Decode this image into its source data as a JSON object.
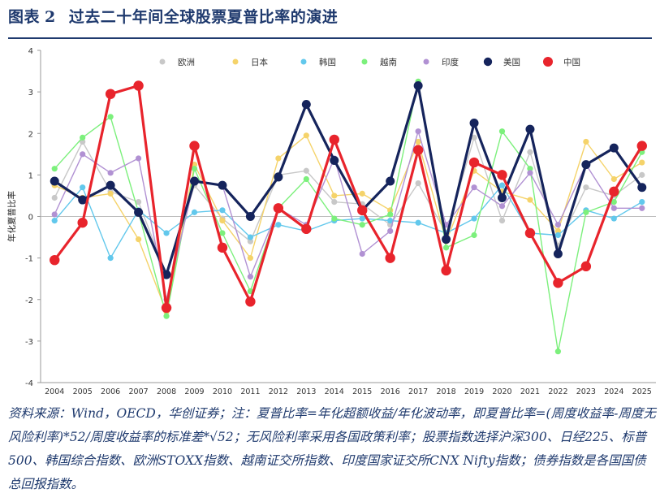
{
  "header": {
    "label": "图表",
    "number": "2",
    "title": "过去二十年间全球股票夏普比率的演进"
  },
  "chart_data": {
    "type": "line",
    "title": "过去二十年间全球股票夏普比率的演进",
    "xlabel": "",
    "ylabel": "年化夏普比率",
    "ylim": [
      -4,
      4
    ],
    "yticks": [
      -4,
      -3,
      -2,
      -1,
      0,
      1,
      2,
      3,
      4
    ],
    "legend_position": "top",
    "x": [
      "2004",
      "2005",
      "2006",
      "2007",
      "2008",
      "2009",
      "2010",
      "2011",
      "2012",
      "2013",
      "2014",
      "2015",
      "2016",
      "2017",
      "2018",
      "2019",
      "2020",
      "2021",
      "2022",
      "2023",
      "2024",
      "2025"
    ],
    "series": [
      {
        "name": "欧洲",
        "color": "#c8c8c8",
        "values": [
          0.45,
          1.8,
          0.6,
          0.35,
          -1.4,
          0.75,
          -0.05,
          -0.6,
          1.0,
          1.1,
          0.35,
          0.3,
          -0.2,
          0.8,
          -0.4,
          1.9,
          -0.1,
          1.55,
          -0.7,
          0.7,
          0.5,
          1.0
        ]
      },
      {
        "name": "日本",
        "color": "#f5d36a",
        "values": [
          0.75,
          0.45,
          0.55,
          -0.55,
          -2.3,
          1.25,
          -0.1,
          -1.0,
          1.4,
          1.95,
          0.5,
          0.55,
          0.15,
          1.8,
          -0.6,
          1.1,
          0.6,
          0.4,
          -0.35,
          1.8,
          0.9,
          1.3
        ]
      },
      {
        "name": "韩国",
        "color": "#62c8ec",
        "values": [
          -0.1,
          0.7,
          -1.0,
          0.15,
          -0.4,
          0.1,
          0.15,
          -0.5,
          -0.2,
          -0.35,
          -0.1,
          -0.05,
          -0.1,
          -0.15,
          -0.4,
          -0.05,
          0.75,
          -0.4,
          -0.45,
          0.15,
          -0.05,
          0.35
        ]
      },
      {
        "name": "越南",
        "color": "#7cf07c",
        "values": [
          1.15,
          1.9,
          2.4,
          0.1,
          -2.4,
          1.15,
          -0.4,
          -1.8,
          0.2,
          0.9,
          -0.05,
          -0.2,
          0.05,
          3.25,
          -0.75,
          -0.45,
          2.05,
          1.15,
          -3.25,
          0.1,
          0.35,
          1.55
        ]
      },
      {
        "name": "印度",
        "color": "#b191d3",
        "values": [
          0.05,
          1.5,
          1.05,
          1.4,
          -2.0,
          0.85,
          0.75,
          -1.45,
          0.2,
          -0.2,
          1.4,
          -0.9,
          -0.35,
          2.05,
          -0.2,
          0.7,
          0.25,
          1.05,
          -0.2,
          1.25,
          0.2,
          0.2
        ]
      },
      {
        "name": "美国",
        "color": "#15245c",
        "values": [
          0.85,
          0.4,
          0.75,
          0.1,
          -1.4,
          0.85,
          0.75,
          0.0,
          0.95,
          2.7,
          1.35,
          0.15,
          0.85,
          3.15,
          -0.55,
          2.25,
          0.45,
          2.1,
          -0.9,
          1.25,
          1.65,
          0.7
        ]
      },
      {
        "name": "中国",
        "color": "#e8242c",
        "values": [
          -1.05,
          -0.15,
          2.95,
          3.15,
          -2.2,
          1.7,
          -0.75,
          -2.05,
          0.2,
          -0.3,
          1.85,
          0.15,
          -1.0,
          1.6,
          -1.3,
          1.3,
          1.0,
          -0.4,
          -1.6,
          -1.2,
          0.6,
          1.7
        ]
      }
    ]
  },
  "footer": {
    "source": "资料来源：Wind，OECD，华创证券；注：夏普比率=年化超额收益/年化波动率，即夏普比率=(周度收益率-周度无风险利率)*52/周度收益率的标准差*√52；无风险利率采用各国政策利率；股票指数选择沪深300、日经225、标普500、韩国综合指数、欧洲STOXX指数、越南证交所指数、印度国家证交所CNX Nifty指数；债券指数是各国国债总回报指数。"
  }
}
